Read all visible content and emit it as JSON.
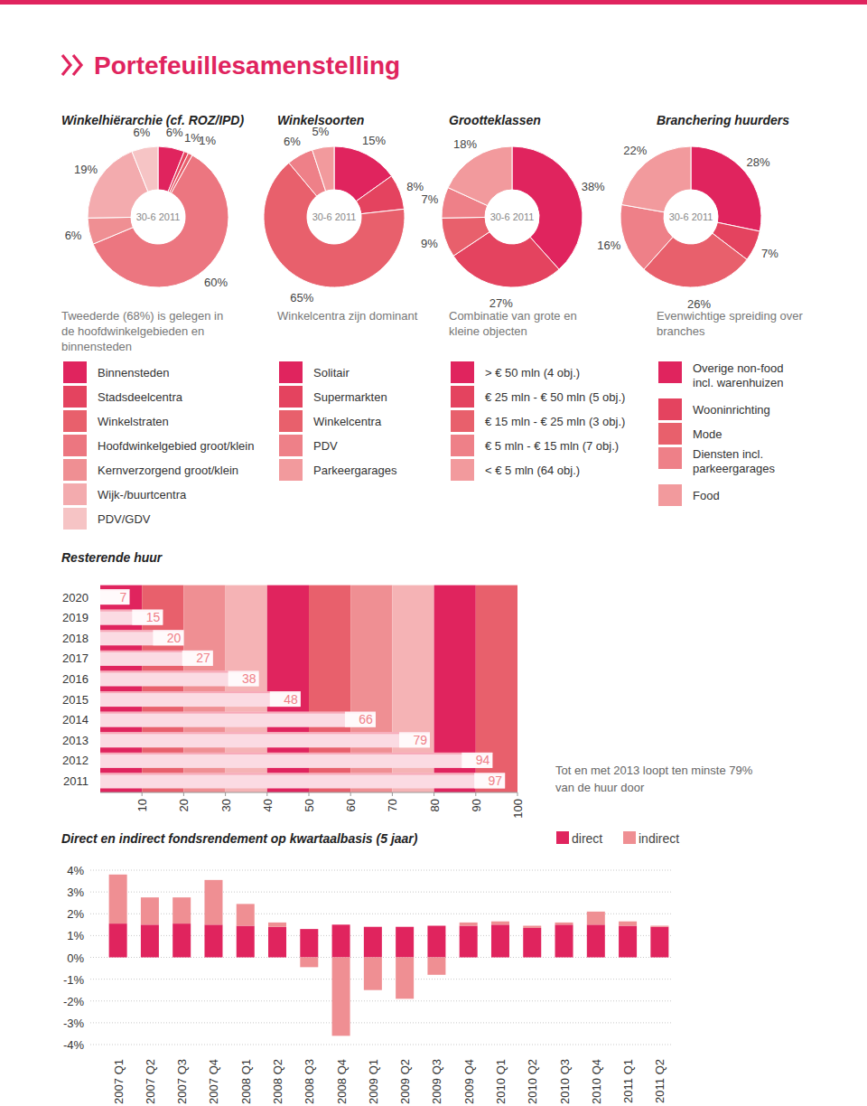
{
  "header": {
    "title": "Portefeuillesamenstelling"
  },
  "chart_data": [
    {
      "type": "pie",
      "title": "Winkelhiërarchie (cf. ROZ/IPD)",
      "center_label": "30-6 2011",
      "caption": "Tweederde (68%) is gelegen in\nde hoofdwinkelgebieden en\nbinnensteden",
      "categories": [
        "Binnensteden",
        "Stadsdeelcentra",
        "Winkelstraten",
        "Hoofdwinkelgebied groot/klein",
        "Kernverzorgend groot/klein",
        "Wijk-/buurtcentra",
        "PDV/GDV"
      ],
      "values": [
        6,
        1,
        1,
        60,
        6,
        19,
        6
      ],
      "value_labels": [
        "6%",
        "1%",
        "1%",
        "60%",
        "6%",
        "19%",
        "6%"
      ],
      "colors": [
        "#e0245e",
        "#e4435f",
        "#e8606c",
        "#ec7680",
        "#ef8f93",
        "#f3abae",
        "#f6c4c5"
      ],
      "legend": "bottom"
    },
    {
      "type": "pie",
      "title": "Winkelsoorten",
      "center_label": "30-6 2011",
      "caption": "Winkelcentra zijn dominant",
      "categories": [
        "Solitair",
        "Supermarkten",
        "Winkelcentra",
        "PDV",
        "Parkeergarages"
      ],
      "values": [
        15,
        8,
        65,
        6,
        5
      ],
      "value_labels": [
        "15%",
        "8%",
        "65%",
        "6%",
        "5%"
      ],
      "colors": [
        "#e0245e",
        "#e4435f",
        "#e8606c",
        "#ee8088",
        "#f29a9d"
      ],
      "legend": "bottom"
    },
    {
      "type": "pie",
      "title": "Grootteklassen",
      "center_label": "30-6 2011",
      "caption": "Combinatie van grote en\nkleine objecten",
      "categories": [
        "> € 50 mln (4 obj.)",
        "€ 25 mln - € 50 mln (5 obj.)",
        "€ 15 mln - € 25 mln (3 obj.)",
        "€ 5 mln - € 15 mln (7 obj.)",
        "< € 5 mln (64 obj.)"
      ],
      "values": [
        38,
        27,
        9,
        7,
        18
      ],
      "value_labels": [
        "38%",
        "27%",
        "9%",
        "7%",
        "18%"
      ],
      "colors": [
        "#e0245e",
        "#e4435f",
        "#e8606c",
        "#ee8088",
        "#f29a9d"
      ],
      "legend": "bottom"
    },
    {
      "type": "pie",
      "title": "Branchering huurders",
      "center_label": "30-6 2011",
      "caption": "Evenwichtige spreiding over\nbranches",
      "categories": [
        "Overige non-food\nincl. warenhuizen",
        "Wooninrichting",
        "Mode",
        "Diensten incl.\nparkeergarages",
        "Food"
      ],
      "values": [
        28,
        7,
        26,
        16,
        22
      ],
      "value_labels": [
        "28%",
        "7%",
        "26%",
        "16%",
        "22%"
      ],
      "colors": [
        "#e0245e",
        "#e4435f",
        "#e8606c",
        "#ee8088",
        "#f29a9d"
      ],
      "legend": "bottom"
    },
    {
      "type": "bar",
      "orientation": "horizontal",
      "title": "Resterende huur",
      "categories": [
        "2011",
        "2012",
        "2013",
        "2014",
        "2015",
        "2016",
        "2017",
        "2018",
        "2019",
        "2020"
      ],
      "values": [
        97,
        94,
        79,
        66,
        48,
        38,
        27,
        20,
        15,
        7
      ],
      "color": "#fbdbe3",
      "xlim": [
        0,
        100
      ],
      "xticks": [
        10,
        20,
        30,
        40,
        50,
        60,
        70,
        80,
        90,
        100
      ],
      "data_labels": true,
      "annotation": "Tot en met 2013 loopt ten minste 79%\nvan de huur door"
    },
    {
      "type": "bar",
      "stacked": true,
      "title": "Direct en indirect fondsrendement op kwartaalbasis (5 jaar)",
      "categories": [
        "2007 Q1",
        "2007 Q2",
        "2007 Q3",
        "2007 Q4",
        "2008 Q1",
        "2008 Q2",
        "2008 Q3",
        "2008 Q4",
        "2009 Q1",
        "2009 Q2",
        "2009 Q3",
        "2009 Q4",
        "2010 Q1",
        "2010 Q2",
        "2010 Q3",
        "2010 Q4",
        "2011 Q1",
        "2011 Q2"
      ],
      "series": [
        {
          "name": "direct",
          "color": "#e0245e",
          "values": [
            1.55,
            1.5,
            1.55,
            1.5,
            1.45,
            1.4,
            1.3,
            1.5,
            1.4,
            1.4,
            1.45,
            1.45,
            1.5,
            1.35,
            1.5,
            1.5,
            1.45,
            1.4
          ]
        },
        {
          "name": "indirect",
          "color": "#ef8f93",
          "values": [
            2.25,
            1.25,
            1.2,
            2.05,
            1.0,
            0.2,
            -0.45,
            -3.6,
            -1.5,
            -1.9,
            -0.8,
            0.15,
            0.15,
            0.1,
            0.1,
            0.6,
            0.2,
            0.05
          ]
        }
      ],
      "ylim": [
        -4,
        4
      ],
      "yticks": [
        {
          "value": 4,
          "label": "4%"
        },
        {
          "value": 3,
          "label": "3%"
        },
        {
          "value": 2,
          "label": "2%"
        },
        {
          "value": 1,
          "label": "1%"
        },
        {
          "value": 0,
          "label": "0%"
        },
        {
          "value": -1,
          "label": "-1%"
        },
        {
          "value": -2,
          "label": "-2%"
        },
        {
          "value": -3,
          "label": "-3%"
        },
        {
          "value": -4,
          "label": "-4%"
        }
      ],
      "grid": true,
      "legend": "top-right"
    }
  ]
}
